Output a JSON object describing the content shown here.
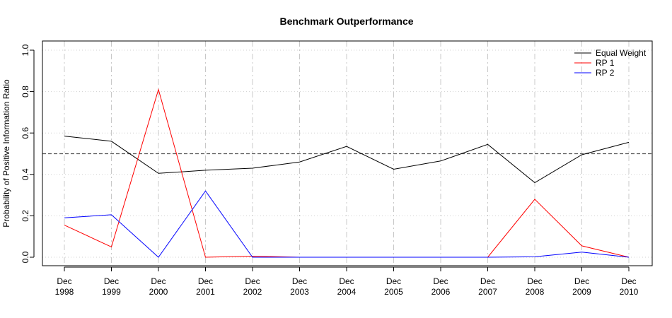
{
  "chart_data": {
    "type": "line",
    "title": "Benchmark Outperformance",
    "xlabel": "",
    "ylabel": "Probability of Positive Information Ratio",
    "categories": [
      [
        "Dec",
        "1998"
      ],
      [
        "Dec",
        "1999"
      ],
      [
        "Dec",
        "2000"
      ],
      [
        "Dec",
        "2001"
      ],
      [
        "Dec",
        "2002"
      ],
      [
        "Dec",
        "2003"
      ],
      [
        "Dec",
        "2004"
      ],
      [
        "Dec",
        "2005"
      ],
      [
        "Dec",
        "2006"
      ],
      [
        "Dec",
        "2007"
      ],
      [
        "Dec",
        "2008"
      ],
      [
        "Dec",
        "2009"
      ],
      [
        "Dec",
        "2010"
      ]
    ],
    "ylim": [
      0,
      1
    ],
    "yticks": [
      "0.0",
      "0.2",
      "0.4",
      "0.6",
      "0.8",
      "1.0"
    ],
    "reference_line": 0.5,
    "grid": true,
    "legend_position": "top-right",
    "series": [
      {
        "name": "Equal Weight",
        "color": "#000000",
        "values": [
          0.585,
          0.56,
          0.405,
          0.42,
          0.43,
          0.46,
          0.535,
          0.425,
          0.465,
          0.545,
          0.36,
          0.495,
          0.555
        ]
      },
      {
        "name": "RP 1",
        "color": "#ff0000",
        "values": [
          0.155,
          0.05,
          0.81,
          0.0,
          0.005,
          0.0,
          0.0,
          0.0,
          0.0,
          0.0,
          0.28,
          0.055,
          0.0
        ]
      },
      {
        "name": "RP 2",
        "color": "#0000ff",
        "values": [
          0.19,
          0.205,
          0.0,
          0.32,
          0.0,
          0.0,
          0.0,
          0.0,
          0.0,
          0.0,
          0.002,
          0.025,
          0.0
        ]
      }
    ]
  }
}
